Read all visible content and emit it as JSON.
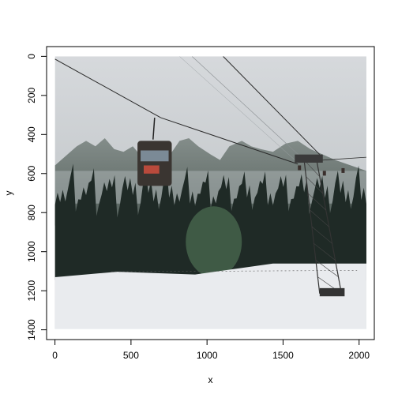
{
  "chart_data": {
    "type": "image",
    "xlabel": "x",
    "ylabel": "y",
    "xlim": [
      -55,
      2100
    ],
    "ylim": [
      1450,
      -50
    ],
    "y_reversed": true,
    "x_ticks": [
      0,
      500,
      1000,
      1500,
      2000
    ],
    "y_ticks": [
      0,
      200,
      400,
      600,
      800,
      1000,
      1200,
      1400
    ],
    "image_extent": {
      "x": [
        0,
        2048
      ],
      "y": [
        0,
        1396
      ]
    },
    "image_description": "Gondola cable car over a snowy conifer forest in fog; a lattice pylon on the right",
    "colors": {
      "sky": "#cfd3d6",
      "fog": "#b9bec2",
      "forest_dark": "#1f2a26",
      "forest_mid": "#34433c",
      "snow": "#e9ebee",
      "cable": "#2b2b2b",
      "gondola": "#3a3531"
    }
  }
}
